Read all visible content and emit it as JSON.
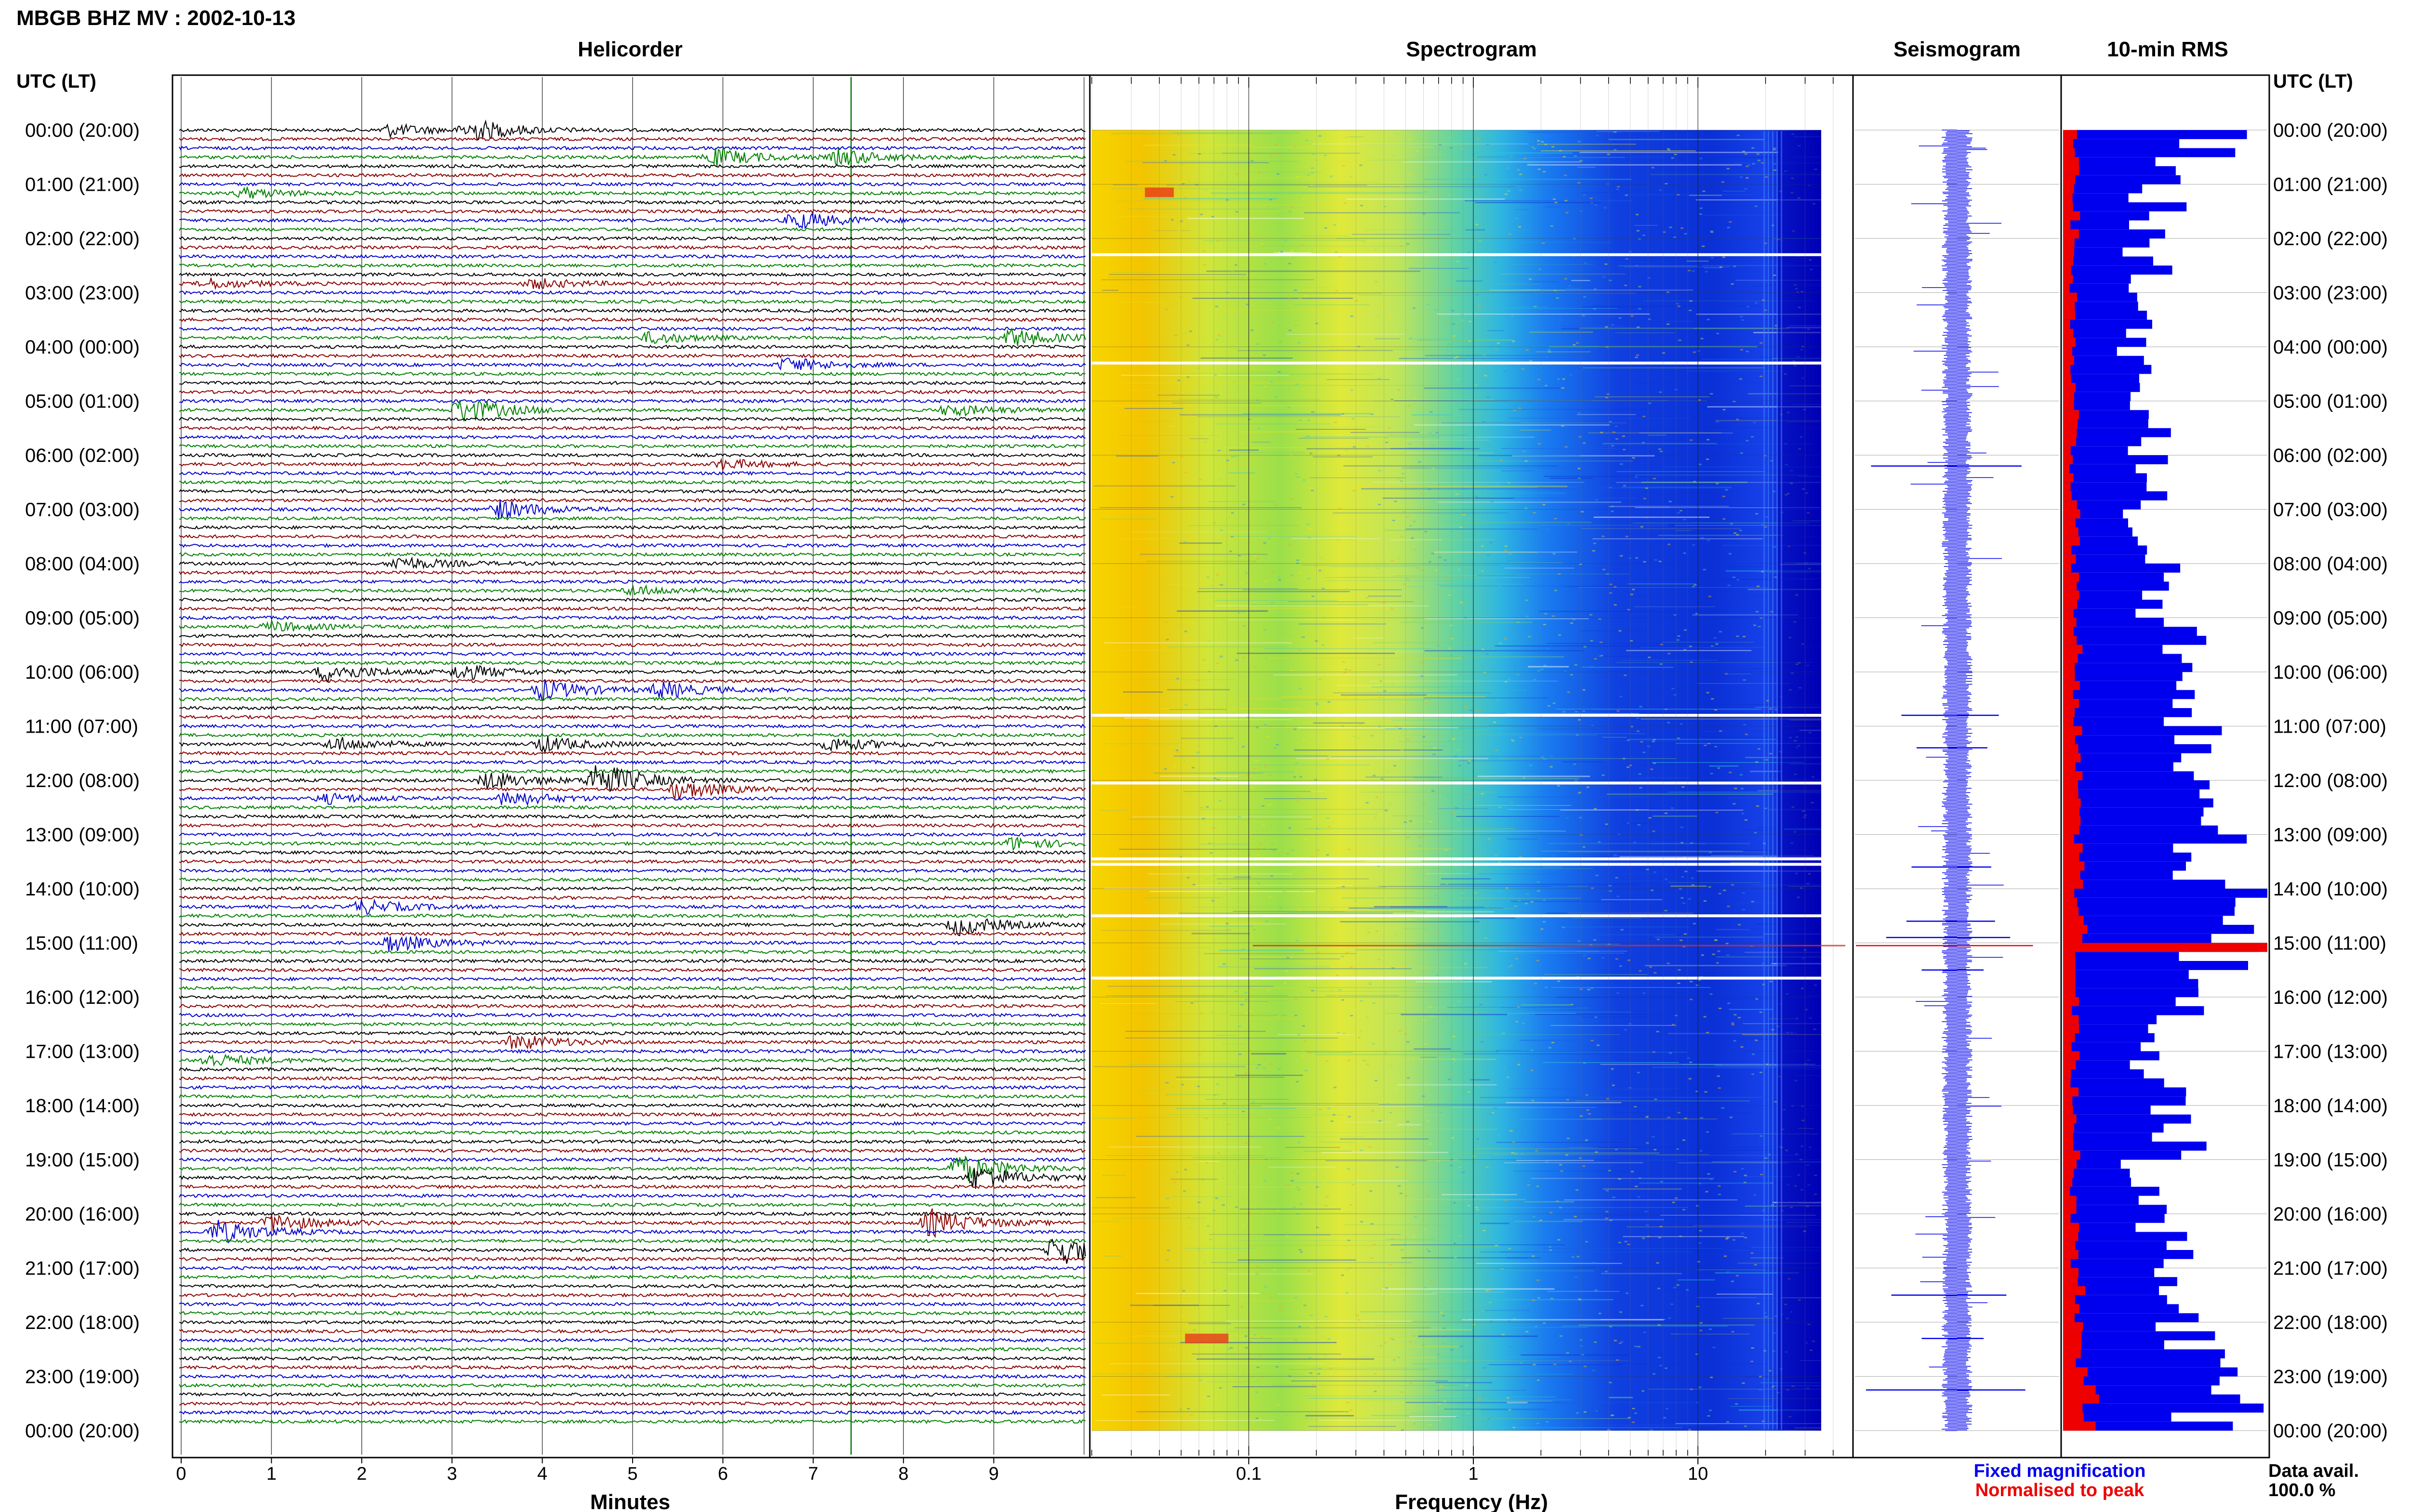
{
  "header": {
    "title": "MBGB BHZ MV : 2002-10-13",
    "utc_label_left": "UTC (LT)",
    "utc_label_right": "UTC (LT)"
  },
  "panels": {
    "helicorder": "Helicorder",
    "spectrogram": "Spectrogram",
    "seismogram": "Seismogram",
    "rms": "10-min RMS"
  },
  "time_labels": [
    "00:00 (20:00)",
    "01:00 (21:00)",
    "02:00 (22:00)",
    "03:00 (23:00)",
    "04:00 (00:00)",
    "05:00 (01:00)",
    "06:00 (02:00)",
    "07:00 (03:00)",
    "08:00 (04:00)",
    "09:00 (05:00)",
    "10:00 (06:00)",
    "11:00 (07:00)",
    "12:00 (08:00)",
    "13:00 (09:00)",
    "14:00 (10:00)",
    "15:00 (11:00)",
    "16:00 (12:00)",
    "17:00 (13:00)",
    "18:00 (14:00)",
    "19:00 (15:00)",
    "20:00 (16:00)",
    "21:00 (17:00)",
    "22:00 (18:00)",
    "23:00 (19:00)",
    "00:00 (20:00)"
  ],
  "chart_data": [
    {
      "type": "line",
      "panel": "Helicorder",
      "xlabel": "Minutes",
      "x_ticks": [
        "0",
        "1",
        "2",
        "3",
        "4",
        "5",
        "6",
        "7",
        "8",
        "9"
      ],
      "xlim": [
        0,
        10
      ],
      "lines_per_hour": 6,
      "trace_colors": [
        "#000000",
        "#8b0000",
        "#0000cc",
        "#008000"
      ],
      "events": [
        {
          "hour": 0,
          "line": 0,
          "minute": 3.2,
          "amp": 2.2,
          "color": "#000000"
        },
        {
          "hour": 0,
          "line": 0,
          "minute": 2.3,
          "amp": 1.2,
          "color": "#8b0000"
        },
        {
          "hour": 0,
          "line": 3,
          "minute": 5.9,
          "amp": 1.8,
          "color": "#000000"
        },
        {
          "hour": 0,
          "line": 3,
          "minute": 7.3,
          "amp": 1.6,
          "color": "#8b0000"
        },
        {
          "hour": 1,
          "line": 1,
          "minute": 0.7,
          "amp": 1.0,
          "color": "#000000"
        },
        {
          "hour": 1,
          "line": 4,
          "minute": 6.8,
          "amp": 1.8,
          "color": "#0000cc"
        },
        {
          "hour": 2,
          "line": 5,
          "minute": 0.3,
          "amp": 1.0,
          "color": "#0000cc"
        },
        {
          "hour": 2,
          "line": 5,
          "minute": 3.9,
          "amp": 1.0,
          "color": "#008000"
        },
        {
          "hour": 3,
          "line": 5,
          "minute": 5.2,
          "amp": 1.2,
          "color": "#000000"
        },
        {
          "hour": 3,
          "line": 5,
          "minute": 9.2,
          "amp": 1.8,
          "color": "#8b0000"
        },
        {
          "hour": 4,
          "line": 2,
          "minute": 6.7,
          "amp": 1.4,
          "color": "#8b0000"
        },
        {
          "hour": 5,
          "line": 1,
          "minute": 3.1,
          "amp": 2.6,
          "color": "#0000cc"
        },
        {
          "hour": 5,
          "line": 1,
          "minute": 8.5,
          "amp": 1.2,
          "color": "#008000"
        },
        {
          "hour": 6,
          "line": 1,
          "minute": 6.0,
          "amp": 1.0,
          "color": "#000000"
        },
        {
          "hour": 7,
          "line": 0,
          "minute": 3.5,
          "amp": 2.0,
          "color": "#0000cc"
        },
        {
          "hour": 8,
          "line": 0,
          "minute": 2.4,
          "amp": 1.4,
          "color": "#008000"
        },
        {
          "hour": 8,
          "line": 3,
          "minute": 5.0,
          "amp": 1.0,
          "color": "#0000cc"
        },
        {
          "hour": 9,
          "line": 1,
          "minute": 1.0,
          "amp": 1.0,
          "color": "#8b0000"
        },
        {
          "hour": 10,
          "line": 0,
          "minute": 3.1,
          "amp": 1.6,
          "color": "#0000cc"
        },
        {
          "hour": 10,
          "line": 0,
          "minute": 1.6,
          "amp": 2.0,
          "color": "#008000"
        },
        {
          "hour": 10,
          "line": 2,
          "minute": 4.0,
          "amp": 2.0,
          "color": "#0000cc"
        },
        {
          "hour": 10,
          "line": 2,
          "minute": 5.3,
          "amp": 1.6,
          "color": "#008000"
        },
        {
          "hour": 11,
          "line": 2,
          "minute": 1.7,
          "amp": 1.4,
          "color": "#000000"
        },
        {
          "hour": 11,
          "line": 2,
          "minute": 4.0,
          "amp": 1.6,
          "color": "#008000"
        },
        {
          "hour": 11,
          "line": 2,
          "minute": 7.2,
          "amp": 1.4,
          "color": "#000000"
        },
        {
          "hour": 12,
          "line": 0,
          "minute": 3.4,
          "amp": 1.8,
          "color": "#0000cc"
        },
        {
          "hour": 12,
          "line": 0,
          "minute": 4.6,
          "amp": 3.6,
          "color": "#000000"
        },
        {
          "hour": 12,
          "line": 1,
          "minute": 5.5,
          "amp": 2.0,
          "color": "#000000"
        },
        {
          "hour": 12,
          "line": 2,
          "minute": 3.6,
          "amp": 1.6,
          "color": "#0000cc"
        },
        {
          "hour": 12,
          "line": 2,
          "minute": 1.6,
          "amp": 1.0,
          "color": "#008000"
        },
        {
          "hour": 13,
          "line": 1,
          "minute": 9.2,
          "amp": 1.2,
          "color": "#008000"
        },
        {
          "hour": 14,
          "line": 2,
          "minute": 2.0,
          "amp": 1.4,
          "color": "#8b0000"
        },
        {
          "hour": 14,
          "line": 4,
          "minute": 8.6,
          "amp": 2.0,
          "color": "#000000"
        },
        {
          "hour": 15,
          "line": 0,
          "minute": 2.3,
          "amp": 1.8,
          "color": "#008000"
        },
        {
          "hour": 16,
          "line": 5,
          "minute": 3.7,
          "amp": 1.6,
          "color": "#000000"
        },
        {
          "hour": 17,
          "line": 1,
          "minute": 0.3,
          "amp": 1.4,
          "color": "#008000"
        },
        {
          "hour": 19,
          "line": 1,
          "minute": 8.6,
          "amp": 3.0,
          "color": "#000000"
        },
        {
          "hour": 19,
          "line": 2,
          "minute": 8.8,
          "amp": 2.4,
          "color": "#8b0000"
        },
        {
          "hour": 20,
          "line": 1,
          "minute": 1.0,
          "amp": 1.8,
          "color": "#8b0000"
        },
        {
          "hour": 20,
          "line": 1,
          "minute": 8.3,
          "amp": 2.8,
          "color": "#008000"
        },
        {
          "hour": 20,
          "line": 2,
          "minute": 0.4,
          "amp": 2.4,
          "color": "#000000"
        },
        {
          "hour": 20,
          "line": 4,
          "minute": 9.7,
          "amp": 3.2,
          "color": "#008000"
        }
      ]
    },
    {
      "type": "heatmap",
      "panel": "Spectrogram",
      "xlabel": "Frequency (Hz)",
      "x_scale": "log",
      "x_ticks": [
        "0.1",
        "1",
        "10"
      ],
      "xlim": [
        0.02,
        50
      ],
      "gap_hours": [
        2.3,
        4.3,
        10.8,
        12.05,
        13.45,
        13.55,
        14.5,
        15.65
      ]
    },
    {
      "type": "line",
      "panel": "Seismogram",
      "spikes": [
        {
          "hour": 6.2,
          "amp": 0.85
        },
        {
          "hour": 10.8,
          "amp": 0.55
        },
        {
          "hour": 11.4,
          "amp": 0.4
        },
        {
          "hour": 13.6,
          "amp": 0.45
        },
        {
          "hour": 14.6,
          "amp": 0.5
        },
        {
          "hour": 14.9,
          "amp": 0.7
        },
        {
          "hour": 15.05,
          "amp": 1.0
        },
        {
          "hour": 15.5,
          "amp": 0.35
        },
        {
          "hour": 21.5,
          "amp": 0.65
        },
        {
          "hour": 22.3,
          "amp": 0.35
        },
        {
          "hour": 23.25,
          "amp": 0.9
        }
      ]
    },
    {
      "type": "bar",
      "panel": "10-min RMS",
      "orientation": "horizontal",
      "series": [
        {
          "name": "Fixed magnification",
          "color": "#0000ee",
          "hourly_values": [
            0.82,
            0.55,
            0.5,
            0.45,
            0.42,
            0.55,
            0.5,
            0.52,
            0.55,
            0.7,
            0.6,
            0.75,
            0.9,
            0.85,
            0.95,
            1.0,
            0.65,
            0.55,
            0.75,
            0.5,
            0.6,
            0.78,
            0.82,
            0.9
          ]
        },
        {
          "name": "Normalised to peak",
          "color": "#ee0000",
          "hourly_values": [
            0.07,
            0.06,
            0.05,
            0.05,
            0.05,
            0.06,
            0.05,
            0.06,
            0.06,
            0.07,
            0.06,
            0.07,
            0.08,
            0.08,
            0.09,
            1.0,
            0.06,
            0.06,
            0.07,
            0.05,
            0.06,
            0.08,
            0.09,
            0.15
          ]
        }
      ],
      "legend": [
        "Fixed magnification",
        "Normalised to peak"
      ]
    }
  ],
  "data_availability": {
    "label": "Data avail.",
    "value": "100.0 %"
  }
}
